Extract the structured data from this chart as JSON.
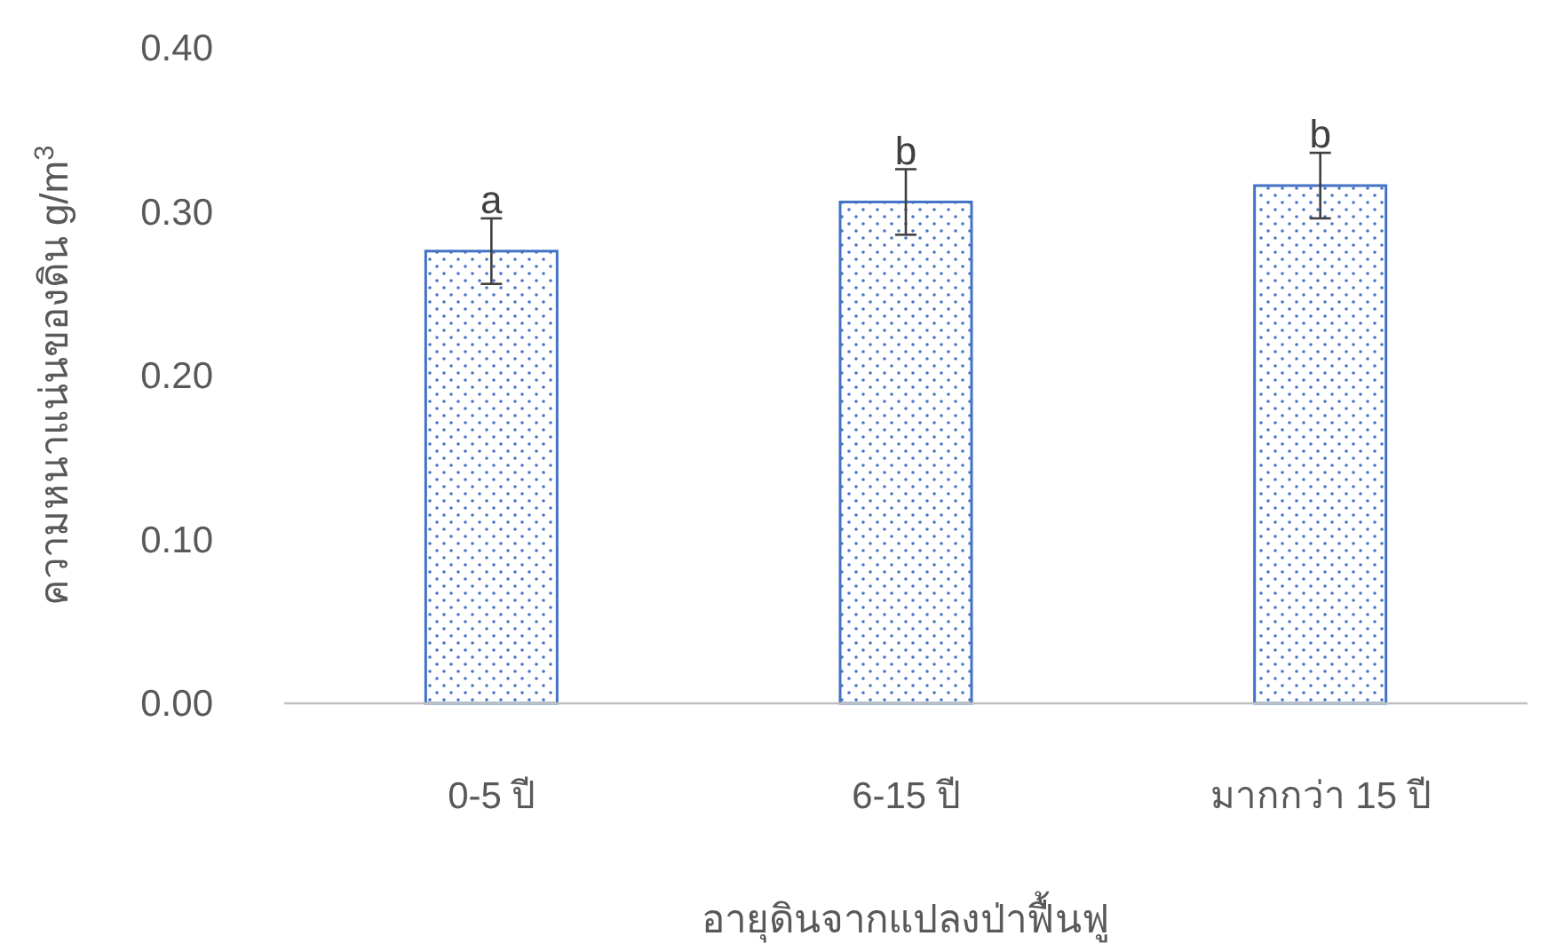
{
  "chart_data": {
    "type": "bar",
    "xlabel": "อายุดินจากแปลงป่าฟื้นฟู",
    "ylabel": "ความหนาแน่นของดิน g/m$^{3}$",
    "categories": [
      "0-5 ปี",
      "6-15 ปี",
      "มากกว่า 15 ปี"
    ],
    "values": [
      0.276,
      0.306,
      0.316
    ],
    "errors": [
      0.02,
      0.02,
      0.02
    ],
    "color": "#4472c4",
    "ylim": [
      0,
      0.4
    ],
    "yticks": [
      {
        "value": 0,
        "label": "0.00"
      },
      {
        "value": 0.1,
        "label": "0.10"
      },
      {
        "value": 0.2,
        "label": "0.20"
      },
      {
        "value": 0.3,
        "label": "0.30"
      },
      {
        "value": 0.4,
        "label": "0.40"
      }
    ],
    "annotations": [
      {
        "text": "a",
        "x": "0-5 ปี",
        "y": 0.296
      },
      {
        "text": "b",
        "x": "6-15 ปี",
        "y": 0.326
      },
      {
        "text": "b",
        "x": "มากกว่า 15 ปี",
        "y": 0.336
      }
    ],
    "grid": false
  }
}
